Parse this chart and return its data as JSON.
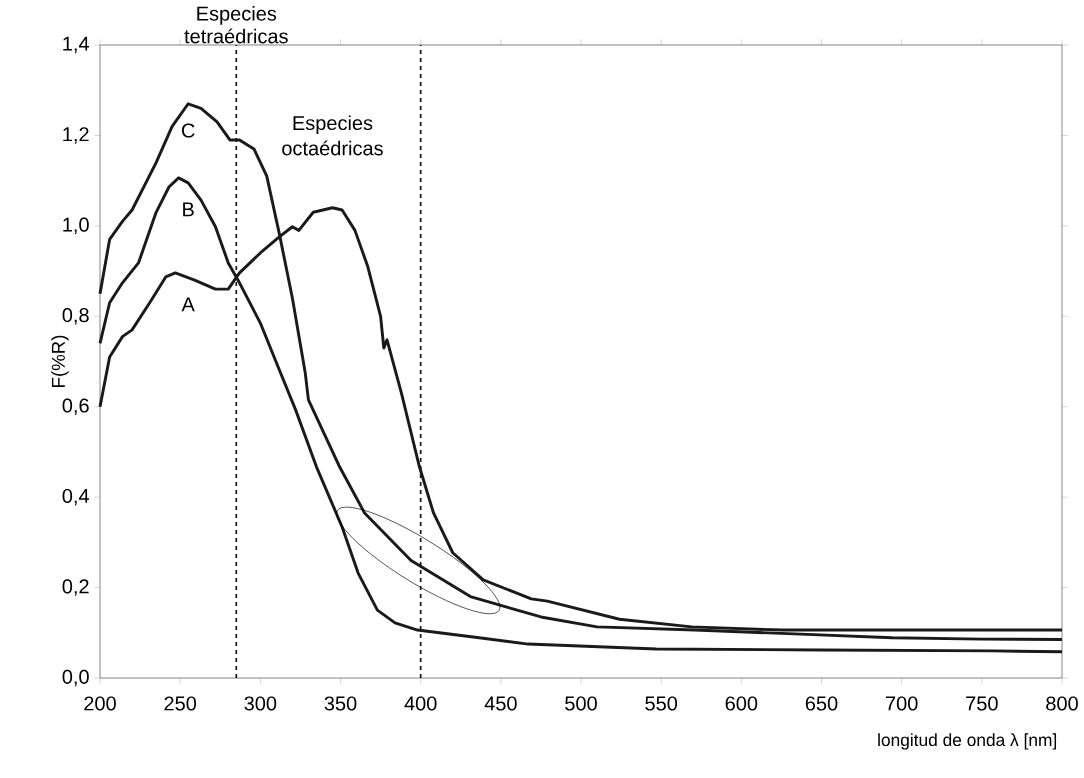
{
  "chart_data": {
    "type": "line",
    "xlabel": "longitud de onda λ [nm]",
    "ylabel": "F(%R)",
    "xlim": [
      200,
      800
    ],
    "ylim": [
      0,
      1.4
    ],
    "xticks": [
      200,
      250,
      300,
      350,
      400,
      450,
      500,
      550,
      600,
      650,
      700,
      750,
      800
    ],
    "yticks": [
      {
        "value": 0,
        "label": "0,0"
      },
      {
        "value": 0.2,
        "label": "0,2"
      },
      {
        "value": 0.4,
        "label": "0,4"
      },
      {
        "value": 0.6,
        "label": "0,6"
      },
      {
        "value": 0.8,
        "label": "0,8"
      },
      {
        "value": 1.0,
        "label": "1,0"
      },
      {
        "value": 1.2,
        "label": "1,2"
      },
      {
        "value": 1.4,
        "label": "1,4"
      }
    ],
    "grid": false,
    "legend": false,
    "marker": "none",
    "line_style": "solid",
    "ref_lines": [
      {
        "axis": "x",
        "value": 285,
        "label": "Especies tetraédricas",
        "line_style": "dashed",
        "color": "#1a1a1a"
      },
      {
        "axis": "x",
        "value": 400,
        "line_style": "dashed",
        "color": "#1a1a1a"
      }
    ],
    "annotations": [
      "Especies octaédricas"
    ],
    "series": [
      {
        "name": "A",
        "color": "#1a1a1a",
        "x": [
          200,
          206,
          214,
          220,
          231,
          241,
          247,
          259,
          272,
          280,
          287,
          300,
          312,
          320,
          324,
          333,
          345,
          351,
          359,
          367,
          375,
          377,
          379,
          388,
          399,
          408,
          420,
          439,
          469,
          479,
          524,
          569,
          626,
          700,
          800
        ],
        "values": [
          0.6,
          0.71,
          0.755,
          0.77,
          0.83,
          0.887,
          0.896,
          0.88,
          0.86,
          0.86,
          0.896,
          0.94,
          0.976,
          0.998,
          0.99,
          1.03,
          1.04,
          1.035,
          0.99,
          0.91,
          0.8,
          0.73,
          0.748,
          0.63,
          0.47,
          0.365,
          0.277,
          0.217,
          0.175,
          0.17,
          0.13,
          0.113,
          0.106,
          0.106,
          0.106
        ]
      },
      {
        "name": "B",
        "color": "#1a1a1a",
        "x": [
          200,
          206,
          214,
          224,
          235,
          243,
          249,
          255,
          263,
          272,
          280,
          287,
          300,
          312,
          322,
          335,
          351,
          361,
          373,
          384,
          398,
          434,
          467,
          547,
          650,
          757,
          800
        ],
        "values": [
          0.74,
          0.83,
          0.874,
          0.918,
          1.03,
          1.086,
          1.106,
          1.095,
          1.057,
          0.998,
          0.918,
          0.874,
          0.785,
          0.68,
          0.593,
          0.467,
          0.334,
          0.232,
          0.15,
          0.122,
          0.106,
          0.09,
          0.075,
          0.064,
          0.062,
          0.06,
          0.058
        ]
      },
      {
        "name": "C",
        "color": "#1a1a1a",
        "x": [
          200,
          206,
          214,
          220,
          235,
          245,
          255,
          263,
          273,
          281,
          287,
          296,
          304,
          312,
          320,
          328,
          330,
          349,
          365,
          394,
          431,
          475,
          510,
          571,
          637,
          694,
          750,
          800
        ],
        "values": [
          0.85,
          0.97,
          1.01,
          1.035,
          1.14,
          1.22,
          1.27,
          1.26,
          1.23,
          1.19,
          1.19,
          1.17,
          1.11,
          0.98,
          0.84,
          0.675,
          0.615,
          0.47,
          0.365,
          0.26,
          0.18,
          0.135,
          0.113,
          0.106,
          0.097,
          0.089,
          0.086,
          0.085
        ]
      }
    ]
  }
}
